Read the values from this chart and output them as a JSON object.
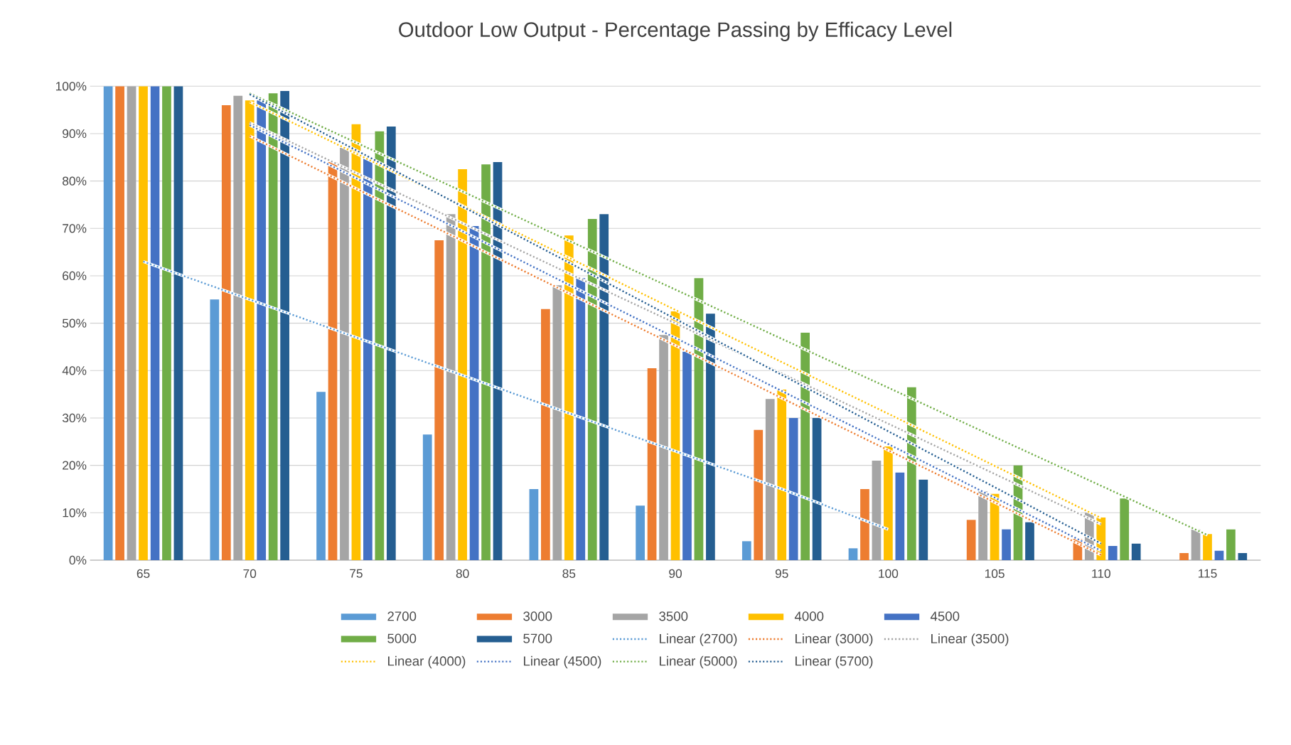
{
  "chart_data": {
    "type": "bar",
    "title": "Outdoor Low Output - Percentage Passing by Efficacy Level",
    "categories": [
      "65",
      "70",
      "75",
      "80",
      "85",
      "90",
      "95",
      "100",
      "105",
      "110",
      "115"
    ],
    "series": [
      {
        "name": "2700",
        "color": "#5b9bd5",
        "values": [
          100,
          55,
          35.5,
          26.5,
          15,
          11.5,
          4,
          2.5,
          0,
          0,
          0
        ]
      },
      {
        "name": "3000",
        "color": "#ed7d31",
        "values": [
          100,
          96,
          84,
          67.5,
          53,
          40.5,
          27.5,
          15,
          8.5,
          4.5,
          1.5
        ]
      },
      {
        "name": "3500",
        "color": "#a5a5a5",
        "values": [
          100,
          98,
          87,
          73,
          58,
          47.5,
          34,
          21,
          14.5,
          10,
          6.5
        ]
      },
      {
        "name": "4000",
        "color": "#ffc000",
        "values": [
          100,
          97,
          92,
          82.5,
          68.5,
          52.5,
          36,
          24,
          14,
          9,
          5.5
        ]
      },
      {
        "name": "4500",
        "color": "#4472c4",
        "values": [
          100,
          97,
          85,
          70.5,
          59.5,
          44,
          30,
          18.5,
          6.5,
          3,
          2
        ]
      },
      {
        "name": "5000",
        "color": "#70ad47",
        "values": [
          100,
          98.5,
          90.5,
          83.5,
          72,
          59.5,
          48,
          36.5,
          20,
          13,
          6.5
        ]
      },
      {
        "name": "5700",
        "color": "#255e91",
        "values": [
          100,
          99,
          91.5,
          84,
          73,
          52,
          30,
          17,
          8,
          3.5,
          1.5
        ]
      },
      {
        "name": "Linear (2700)",
        "type": "line",
        "line_style": "dotted",
        "color": "#5b9bd5",
        "values": [
          63,
          55,
          47,
          39,
          31,
          23,
          15,
          6.5,
          null,
          null,
          null
        ]
      },
      {
        "name": "Linear (3000)",
        "type": "line",
        "line_style": "dotted",
        "color": "#ed7d31",
        "values": [
          null,
          89.5,
          78.4,
          67.4,
          56.3,
          45.3,
          34.2,
          23.2,
          12.2,
          1.1,
          null
        ]
      },
      {
        "name": "Linear (3500)",
        "type": "line",
        "line_style": "dotted",
        "color": "#a5a5a5",
        "values": [
          null,
          92.3,
          81.7,
          71.1,
          60.5,
          50,
          39.4,
          28.8,
          18.2,
          7.6,
          null
        ]
      },
      {
        "name": "Linear (4000)",
        "type": "line",
        "line_style": "dotted",
        "color": "#ffc000",
        "values": [
          null,
          96.7,
          85.8,
          74.8,
          63.8,
          52.8,
          41.8,
          30.9,
          19.9,
          8.9,
          null
        ]
      },
      {
        "name": "Linear (4500)",
        "type": "line",
        "line_style": "dotted",
        "color": "#4472c4",
        "values": [
          null,
          91.8,
          80.6,
          69.4,
          58.1,
          46.9,
          35.7,
          24.5,
          13.2,
          2,
          null
        ]
      },
      {
        "name": "Linear (5000)",
        "type": "line",
        "line_style": "dotted",
        "color": "#70ad47",
        "values": [
          null,
          98.5,
          88.1,
          77.8,
          67.4,
          57.1,
          46.7,
          36.4,
          26,
          15.7,
          5.3
        ]
      },
      {
        "name": "Linear (5700)",
        "type": "line",
        "line_style": "dotted",
        "color": "#255e91",
        "values": [
          null,
          98.3,
          86.5,
          74.6,
          62.8,
          50.9,
          39.1,
          27.2,
          15.4,
          3.5,
          null
        ]
      }
    ],
    "ylim": [
      0,
      100
    ],
    "yticks": [
      {
        "value": 0,
        "label": "0%"
      },
      {
        "value": 10,
        "label": "10%"
      },
      {
        "value": 20,
        "label": "20%"
      },
      {
        "value": 30,
        "label": "30%"
      },
      {
        "value": 40,
        "label": "40%"
      },
      {
        "value": 50,
        "label": "50%"
      },
      {
        "value": 60,
        "label": "60%"
      },
      {
        "value": 70,
        "label": "70%"
      },
      {
        "value": 80,
        "label": "80%"
      },
      {
        "value": 90,
        "label": "90%"
      },
      {
        "value": 100,
        "label": "100%"
      }
    ],
    "grid": "y",
    "legend": "bottom"
  }
}
